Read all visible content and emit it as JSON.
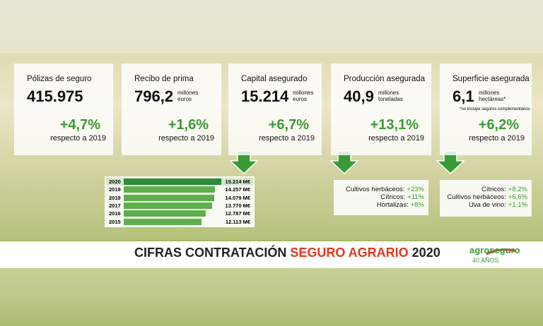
{
  "cards": [
    {
      "title": "Pólizas de seguro",
      "value": "415.975",
      "change": "+4,7%",
      "note": "respecto a 2019"
    },
    {
      "title": "Recibo de prima",
      "value": "796,2",
      "unit": [
        "millones",
        "euros"
      ],
      "change": "+1,6%",
      "note": "respecto a 2019"
    },
    {
      "title": "Capital asegurado",
      "value": "15.214",
      "unit": [
        "millones",
        "euros"
      ],
      "change": "+6,7%",
      "note": "respecto a 2019"
    },
    {
      "title": "Producción asegurada",
      "value": "40,9",
      "unit": [
        "millones",
        "toneladas"
      ],
      "change": "+13,1%",
      "note": "respecto a 2019"
    },
    {
      "title": "Superficie asegurada",
      "value": "6,1",
      "unit": [
        "millones",
        "hectáreas*"
      ],
      "footnote": "*no incluye seguros complementarios",
      "change": "+6,2%",
      "note": "respecto a 2019"
    }
  ],
  "capital_chart": {
    "years": [
      "2020",
      "2019",
      "2018",
      "2017",
      "2016",
      "2015"
    ],
    "values": [
      15214,
      14257,
      14079,
      13770,
      12787,
      12113
    ],
    "value_labels": [
      "15.214 M€",
      "14.257 M€",
      "14.079 M€",
      "13.770 M€",
      "12.787 M€",
      "12.113 M€"
    ]
  },
  "production_list": [
    {
      "label": "Cultivos herbáceos:",
      "value": "+23%"
    },
    {
      "label": "Cítricos:",
      "value": "+11%"
    },
    {
      "label": "Hortalizas:",
      "value": "+8%"
    }
  ],
  "surface_list": [
    {
      "label": "Cítricos:",
      "value": "+8,2%"
    },
    {
      "label": "Cultivos herbáceos:",
      "value": "+6,6%"
    },
    {
      "label": "Uva de vino:",
      "value": "+1,1%"
    }
  ],
  "footer": {
    "title_a": "CIFRAS CONTRATACIÓN",
    "title_b": "SEGURO AGRARIO",
    "title_c": "2020",
    "logo": "agroseguro",
    "logo_sub": "40 AÑOS"
  }
}
